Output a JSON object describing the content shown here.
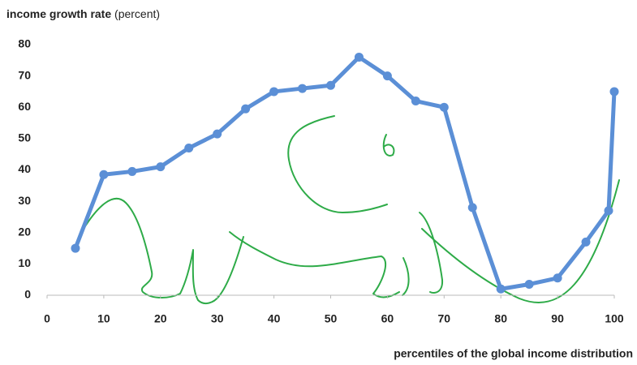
{
  "chart_data": {
    "type": "line",
    "ylabel": "income growth rate",
    "ylabel_unit": "(percent)",
    "xlabel": "percentiles of the global income distribution",
    "x": [
      5,
      10,
      15,
      20,
      25,
      30,
      35,
      40,
      45,
      50,
      55,
      60,
      65,
      70,
      75,
      80,
      85,
      90,
      95,
      99,
      100
    ],
    "values": [
      15,
      38.5,
      39.5,
      41,
      47,
      51.5,
      59.5,
      65,
      66,
      67,
      76,
      70,
      62,
      60,
      28,
      2,
      3.5,
      5.5,
      17,
      27,
      65
    ],
    "color": "#5b8fd6",
    "xlim": [
      0,
      100
    ],
    "xticks": [
      0,
      10,
      20,
      30,
      40,
      50,
      60,
      70,
      80,
      90,
      100
    ],
    "ylim": [
      0,
      80
    ],
    "yticks": [
      0,
      10,
      20,
      30,
      40,
      50,
      60,
      70,
      80
    ],
    "grid": false
  }
}
